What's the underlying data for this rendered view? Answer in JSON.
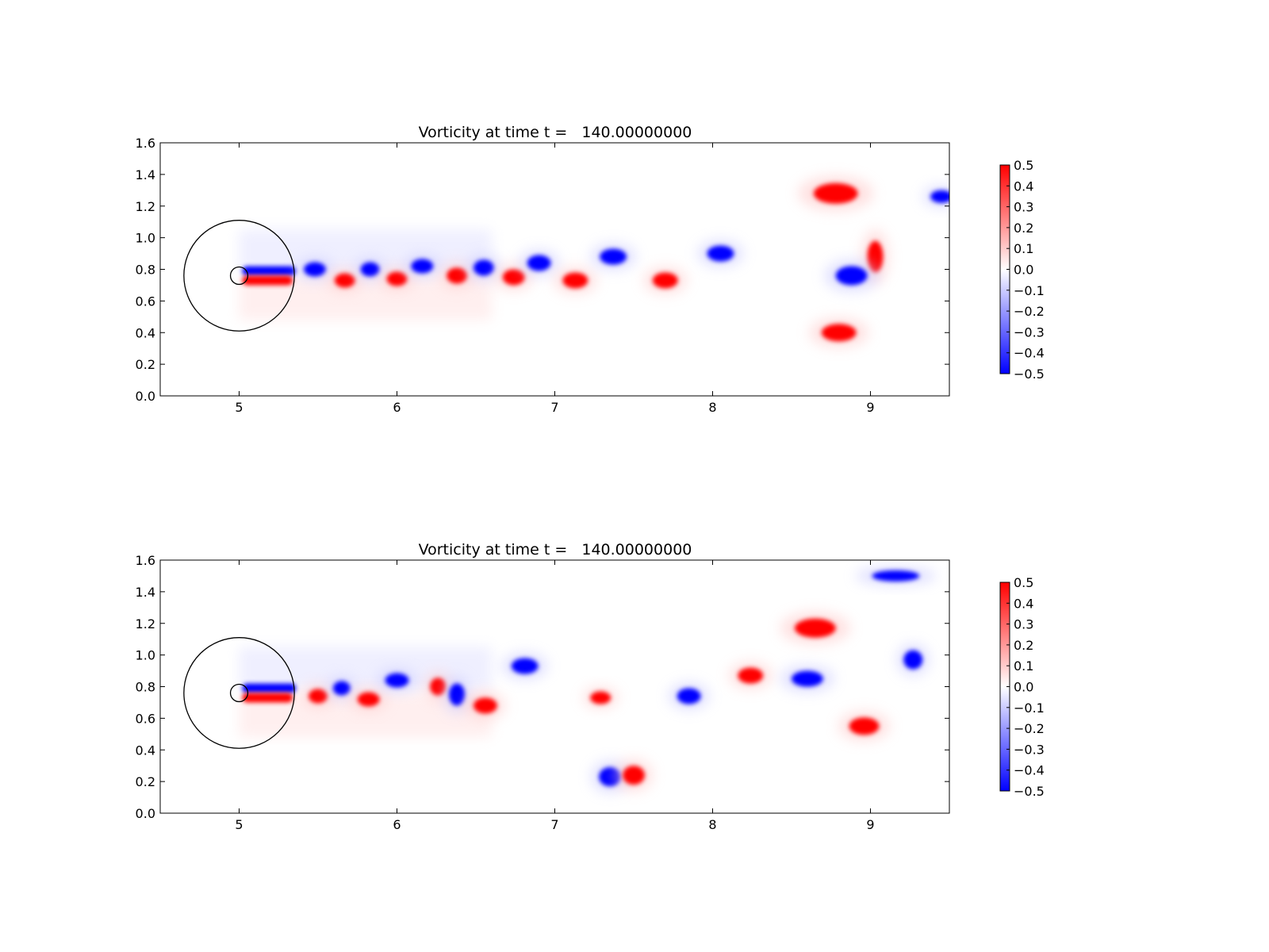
{
  "chart_data": [
    {
      "type": "heatmap",
      "title": "Vorticity at time t =   140.00000000",
      "xlabel": "",
      "ylabel": "",
      "xlim": [
        4.5,
        9.5
      ],
      "ylim": [
        0.0,
        1.6
      ],
      "xticks": [
        "5",
        "6",
        "7",
        "8",
        "9"
      ],
      "yticks": [
        "0.0",
        "0.2",
        "0.4",
        "0.6",
        "0.8",
        "1.0",
        "1.2",
        "1.4",
        "1.6"
      ],
      "colorbar": {
        "range": [
          -0.5,
          0.5
        ],
        "colors": [
          "#0000ff",
          "#ffffff",
          "#ff0000"
        ],
        "ticks": [
          "0.5",
          "0.4",
          "0.3",
          "0.2",
          "0.1",
          "0.0",
          "−0.1",
          "−0.2",
          "−0.3",
          "−0.4",
          "−0.5"
        ],
        "placement": "right"
      },
      "circles": [
        {
          "cx": 5.0,
          "cy": 0.76,
          "r": 0.35
        },
        {
          "cx": 5.0,
          "cy": 0.76,
          "r": 0.055
        }
      ],
      "vortices": [
        {
          "x": 5.48,
          "y": 0.8,
          "w": 0.14,
          "h": 0.09,
          "value": -0.5
        },
        {
          "x": 5.67,
          "y": 0.73,
          "w": 0.13,
          "h": 0.09,
          "value": 0.5
        },
        {
          "x": 5.83,
          "y": 0.8,
          "w": 0.12,
          "h": 0.09,
          "value": -0.5
        },
        {
          "x": 6.0,
          "y": 0.74,
          "w": 0.13,
          "h": 0.09,
          "value": 0.5
        },
        {
          "x": 6.16,
          "y": 0.82,
          "w": 0.14,
          "h": 0.09,
          "value": -0.5
        },
        {
          "x": 6.38,
          "y": 0.76,
          "w": 0.13,
          "h": 0.1,
          "value": 0.5
        },
        {
          "x": 6.55,
          "y": 0.81,
          "w": 0.13,
          "h": 0.1,
          "value": -0.5
        },
        {
          "x": 6.74,
          "y": 0.75,
          "w": 0.14,
          "h": 0.1,
          "value": 0.5
        },
        {
          "x": 6.9,
          "y": 0.84,
          "w": 0.15,
          "h": 0.1,
          "value": -0.5
        },
        {
          "x": 7.13,
          "y": 0.73,
          "w": 0.16,
          "h": 0.1,
          "value": 0.5
        },
        {
          "x": 7.37,
          "y": 0.88,
          "w": 0.17,
          "h": 0.1,
          "value": -0.5
        },
        {
          "x": 7.7,
          "y": 0.73,
          "w": 0.16,
          "h": 0.1,
          "value": 0.5
        },
        {
          "x": 8.05,
          "y": 0.9,
          "w": 0.17,
          "h": 0.1,
          "value": -0.5
        },
        {
          "x": 8.78,
          "y": 1.28,
          "w": 0.28,
          "h": 0.13,
          "value": 0.5
        },
        {
          "x": 9.45,
          "y": 1.26,
          "w": 0.14,
          "h": 0.08,
          "value": -0.5
        },
        {
          "x": 9.03,
          "y": 0.88,
          "w": 0.1,
          "h": 0.2,
          "value": 0.5
        },
        {
          "x": 8.88,
          "y": 0.76,
          "w": 0.2,
          "h": 0.12,
          "value": -0.5
        },
        {
          "x": 8.8,
          "y": 0.4,
          "w": 0.22,
          "h": 0.11,
          "value": 0.5
        }
      ]
    },
    {
      "type": "heatmap",
      "title": "Vorticity at time t =   140.00000000",
      "xlabel": "",
      "ylabel": "",
      "xlim": [
        4.5,
        9.5
      ],
      "ylim": [
        0.0,
        1.6
      ],
      "xticks": [
        "5",
        "6",
        "7",
        "8",
        "9"
      ],
      "yticks": [
        "0.0",
        "0.2",
        "0.4",
        "0.6",
        "0.8",
        "1.0",
        "1.2",
        "1.4",
        "1.6"
      ],
      "colorbar": {
        "range": [
          -0.5,
          0.5
        ],
        "colors": [
          "#0000ff",
          "#ffffff",
          "#ff0000"
        ],
        "ticks": [
          "0.5",
          "0.4",
          "0.3",
          "0.2",
          "0.1",
          "0.0",
          "−0.1",
          "−0.2",
          "−0.3",
          "−0.4",
          "−0.5"
        ],
        "placement": "right"
      },
      "circles": [
        {
          "cx": 5.0,
          "cy": 0.76,
          "r": 0.35
        },
        {
          "cx": 5.0,
          "cy": 0.76,
          "r": 0.055
        }
      ],
      "vortices": [
        {
          "x": 5.5,
          "y": 0.74,
          "w": 0.12,
          "h": 0.09,
          "value": 0.5
        },
        {
          "x": 5.65,
          "y": 0.79,
          "w": 0.11,
          "h": 0.09,
          "value": -0.5
        },
        {
          "x": 5.82,
          "y": 0.72,
          "w": 0.14,
          "h": 0.09,
          "value": 0.5
        },
        {
          "x": 6.0,
          "y": 0.84,
          "w": 0.15,
          "h": 0.09,
          "value": -0.5
        },
        {
          "x": 6.26,
          "y": 0.8,
          "w": 0.1,
          "h": 0.11,
          "value": 0.5
        },
        {
          "x": 6.38,
          "y": 0.75,
          "w": 0.1,
          "h": 0.14,
          "value": -0.5
        },
        {
          "x": 6.56,
          "y": 0.68,
          "w": 0.15,
          "h": 0.1,
          "value": 0.5
        },
        {
          "x": 6.81,
          "y": 0.93,
          "w": 0.17,
          "h": 0.1,
          "value": -0.5
        },
        {
          "x": 7.29,
          "y": 0.73,
          "w": 0.13,
          "h": 0.08,
          "value": 0.5
        },
        {
          "x": 7.35,
          "y": 0.23,
          "w": 0.14,
          "h": 0.12,
          "value": -0.5
        },
        {
          "x": 7.5,
          "y": 0.24,
          "w": 0.14,
          "h": 0.12,
          "value": 0.5
        },
        {
          "x": 7.85,
          "y": 0.74,
          "w": 0.15,
          "h": 0.1,
          "value": -0.5
        },
        {
          "x": 8.24,
          "y": 0.87,
          "w": 0.16,
          "h": 0.1,
          "value": 0.5
        },
        {
          "x": 8.6,
          "y": 0.85,
          "w": 0.2,
          "h": 0.1,
          "value": -0.5
        },
        {
          "x": 8.65,
          "y": 1.17,
          "w": 0.26,
          "h": 0.12,
          "value": 0.5
        },
        {
          "x": 9.16,
          "y": 1.5,
          "w": 0.3,
          "h": 0.07,
          "value": -0.5
        },
        {
          "x": 9.27,
          "y": 0.97,
          "w": 0.12,
          "h": 0.12,
          "value": -0.5
        },
        {
          "x": 8.96,
          "y": 0.55,
          "w": 0.19,
          "h": 0.11,
          "value": 0.5
        }
      ]
    }
  ]
}
